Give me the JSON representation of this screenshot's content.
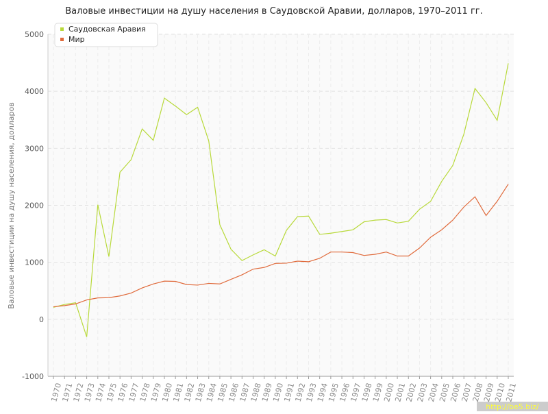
{
  "chart_data": {
    "type": "line",
    "title": "Валовые инвестиции на душу населения в Саудовской Аравии, долларов, 1970–2011 гг.",
    "y_label": "Валовые инвестиции на душу населения, долларов",
    "categories": [
      "1970",
      "1971",
      "1972",
      "1973",
      "1974",
      "1975",
      "1976",
      "1977",
      "1978",
      "1979",
      "1980",
      "1981",
      "1982",
      "1983",
      "1984",
      "1985",
      "1986",
      "1987",
      "1988",
      "1989",
      "1990",
      "1991",
      "1992",
      "1993",
      "1994",
      "1995",
      "1996",
      "1997",
      "1998",
      "1999",
      "2000",
      "2001",
      "2002",
      "2003",
      "2004",
      "2005",
      "2006",
      "2007",
      "2008",
      "2009",
      "2010",
      "2011"
    ],
    "series": [
      {
        "name": "Саудовская Аравия",
        "color": "#b8d93a",
        "values": [
          210,
          260,
          290,
          -310,
          2010,
          1100,
          2580,
          2800,
          3340,
          3140,
          3880,
          3740,
          3590,
          3720,
          3130,
          1660,
          1230,
          1030,
          1130,
          1220,
          1110,
          1560,
          1800,
          1810,
          1490,
          1510,
          1540,
          1570,
          1710,
          1740,
          1750,
          1690,
          1720,
          1930,
          2070,
          2420,
          2700,
          3250,
          4050,
          3800,
          3490,
          4490
        ]
      },
      {
        "name": "Мир",
        "color": "#e06a3b",
        "values": [
          220,
          240,
          270,
          340,
          375,
          380,
          410,
          460,
          550,
          620,
          670,
          665,
          610,
          600,
          630,
          620,
          700,
          780,
          880,
          910,
          980,
          985,
          1020,
          1010,
          1070,
          1180,
          1180,
          1170,
          1120,
          1140,
          1180,
          1110,
          1110,
          1250,
          1440,
          1570,
          1740,
          1970,
          2150,
          1820,
          2070,
          2370
        ]
      }
    ],
    "ylim": [
      -1000,
      5000
    ],
    "yticks": [
      -1000,
      0,
      1000,
      2000,
      3000,
      4000,
      5000
    ],
    "grid": true,
    "legend": "top-left",
    "watermark": "http://be5.biz/"
  }
}
